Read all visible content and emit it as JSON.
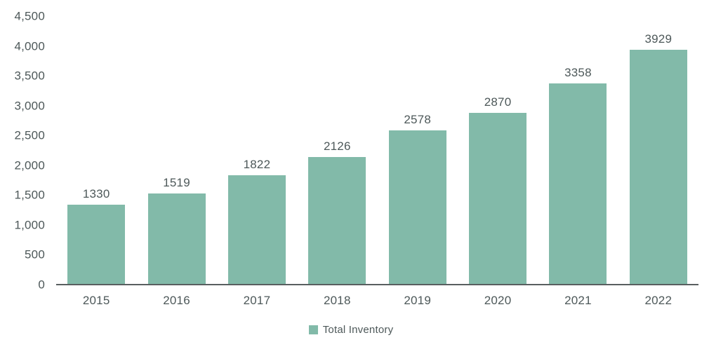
{
  "chart_data": {
    "type": "bar",
    "title": "",
    "categories": [
      "2015",
      "2016",
      "2017",
      "2018",
      "2019",
      "2020",
      "2021",
      "2022"
    ],
    "series": [
      {
        "name": "Total Inventory",
        "values": [
          1330,
          1519,
          1822,
          2126,
          2578,
          2870,
          3358,
          3929
        ]
      }
    ],
    "value_labels": [
      "1330",
      "1519",
      "1822",
      "2126",
      "2578",
      "2870",
      "3358",
      "3929"
    ],
    "xlabel": "",
    "ylabel": "",
    "ylim": [
      0,
      4500
    ],
    "y_tick_step": 500,
    "y_tick_labels": [
      "0",
      "500",
      "1,000",
      "1,500",
      "2,000",
      "2,500",
      "3,000",
      "3,500",
      "4,000",
      "4,500"
    ],
    "grid": false,
    "legend_position": "bottom"
  },
  "legend": {
    "label": "Total Inventory"
  },
  "colors": {
    "bar": "#82BAA9",
    "text": "#4D5859",
    "axis_line": "#595F60",
    "background": "#FFFFFF"
  }
}
